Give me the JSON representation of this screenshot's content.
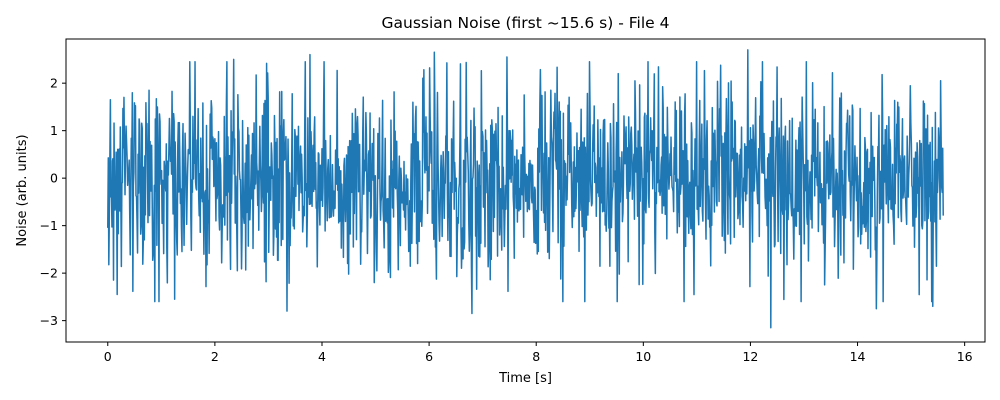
{
  "chart_data": {
    "type": "line",
    "title": "Gaussian Noise (first ~15.6 s) - File 4",
    "xlabel": "Time [s]",
    "ylabel": "Noise (arb. units)",
    "xlim": [
      -0.78,
      16.38
    ],
    "ylim": [
      -3.45,
      2.93
    ],
    "xticks": [
      0,
      2,
      4,
      6,
      8,
      10,
      12,
      14,
      16
    ],
    "xtick_labels": [
      "0",
      "2",
      "4",
      "6",
      "8",
      "10",
      "12",
      "14",
      "16"
    ],
    "yticks": [
      -3,
      -2,
      -1,
      0,
      1,
      2
    ],
    "ytick_labels": [
      "−3",
      "−2",
      "−1",
      "0",
      "1",
      "2"
    ],
    "grid": false,
    "legend": "none",
    "series": [
      {
        "color": "#1f77b4",
        "x_start": 0,
        "x_end": 15.6,
        "num_points": 1600,
        "mean": 0,
        "std": 0.98,
        "seed": 4,
        "extremes": [
          {
            "x": 0.05,
            "y": 1.65
          },
          {
            "x": 0.96,
            "y": -2.6
          },
          {
            "x": 2.35,
            "y": 2.5
          },
          {
            "x": 3.35,
            "y": -2.8
          },
          {
            "x": 3.78,
            "y": 2.6
          },
          {
            "x": 6.1,
            "y": 2.65
          },
          {
            "x": 6.8,
            "y": -2.85
          },
          {
            "x": 7.45,
            "y": 2.55
          },
          {
            "x": 11.95,
            "y": 2.7
          },
          {
            "x": 12.38,
            "y": -3.15
          },
          {
            "x": 14.35,
            "y": -2.75
          },
          {
            "x": 15.4,
            "y": -2.7
          },
          {
            "x": 15.55,
            "y": 2.05
          },
          {
            "x": 15.58,
            "y": -0.3
          }
        ]
      }
    ]
  }
}
